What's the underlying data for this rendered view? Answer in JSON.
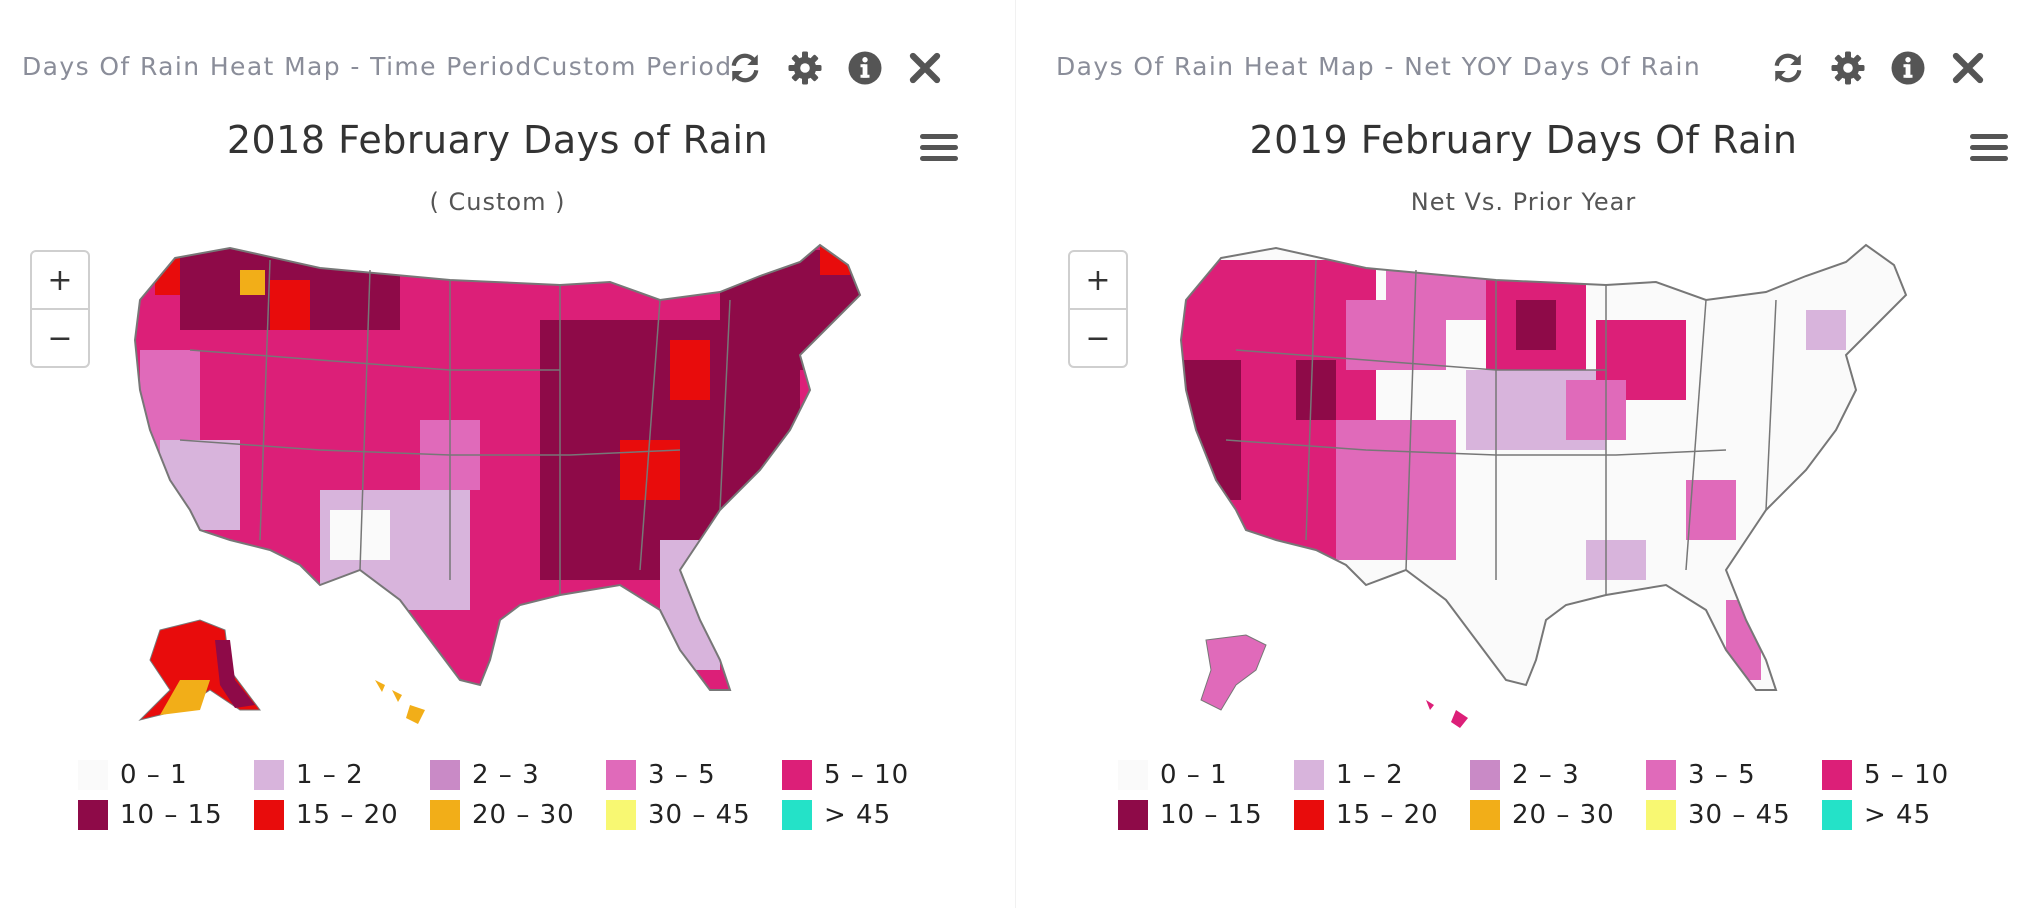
{
  "panels": [
    {
      "header_title": "Days Of Rain Heat Map - Time PeriodCustom Period",
      "chart_title": "2018 February Days of Rain",
      "chart_subtitle": "( Custom )",
      "zoom_in": "+",
      "zoom_out": "−"
    },
    {
      "header_title": "Days Of Rain Heat Map - Net YOY Days Of Rain",
      "chart_title": "2019 February Days Of Rain",
      "chart_subtitle": "Net Vs. Prior Year",
      "zoom_in": "+",
      "zoom_out": "−"
    }
  ],
  "toolbar_icons": [
    "refresh-icon",
    "gear-icon",
    "info-icon",
    "close-icon"
  ],
  "legend": [
    {
      "label": "0 – 1",
      "color": "#fafafa"
    },
    {
      "label": "1 – 2",
      "color": "#d8b4dc"
    },
    {
      "label": "2 – 3",
      "color": "#c98ac6"
    },
    {
      "label": "3 – 5",
      "color": "#e06aba"
    },
    {
      "label": "5 – 10",
      "color": "#dc1f78"
    },
    {
      "label": "10 – 15",
      "color": "#8e0a48"
    },
    {
      "label": "15 – 20",
      "color": "#e80c0c"
    },
    {
      "label": "20 – 30",
      "color": "#f2ae18"
    },
    {
      "label": "30 – 45",
      "color": "#f8f872"
    },
    {
      "label": "> 45",
      "color": "#24e2c8"
    }
  ],
  "colors": {
    "header_text": "#8a8d99",
    "icon": "#555555",
    "state_border": "#777777"
  }
}
